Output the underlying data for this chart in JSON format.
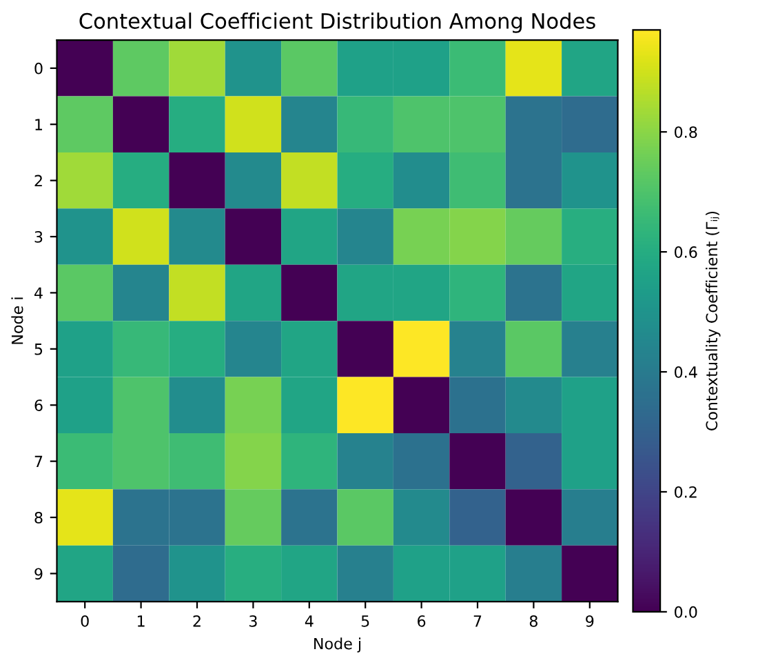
{
  "chart_data": {
    "type": "heatmap",
    "title": "Contextual Coefficient Distribution Among Nodes",
    "xlabel": "Node j",
    "ylabel": "Node i",
    "clabel": "Contextuality Coefficient (Γᵢⱼ)",
    "categories": [
      "0",
      "1",
      "2",
      "3",
      "4",
      "5",
      "6",
      "7",
      "8",
      "9"
    ],
    "y_categories": [
      "0",
      "1",
      "2",
      "3",
      "4",
      "5",
      "6",
      "7",
      "8",
      "9"
    ],
    "cells": [
      [
        0,
        0.73,
        0.83,
        0.5,
        0.72,
        0.55,
        0.55,
        0.66,
        0.93,
        0.57
      ],
      [
        0.73,
        0,
        0.6,
        0.9,
        0.44,
        0.65,
        0.7,
        0.7,
        0.37,
        0.34
      ],
      [
        0.83,
        0.6,
        0,
        0.46,
        0.88,
        0.6,
        0.47,
        0.67,
        0.37,
        0.5
      ],
      [
        0.5,
        0.9,
        0.46,
        0,
        0.57,
        0.44,
        0.77,
        0.79,
        0.74,
        0.61
      ],
      [
        0.72,
        0.44,
        0.88,
        0.57,
        0,
        0.57,
        0.57,
        0.63,
        0.37,
        0.57
      ],
      [
        0.55,
        0.65,
        0.6,
        0.44,
        0.57,
        0,
        0.97,
        0.43,
        0.72,
        0.42
      ],
      [
        0.55,
        0.7,
        0.47,
        0.77,
        0.57,
        0.97,
        0,
        0.36,
        0.46,
        0.55
      ],
      [
        0.66,
        0.7,
        0.67,
        0.79,
        0.63,
        0.43,
        0.36,
        0,
        0.3,
        0.55
      ],
      [
        0.93,
        0.37,
        0.37,
        0.74,
        0.37,
        0.72,
        0.46,
        0.3,
        0,
        0.41
      ],
      [
        0.57,
        0.34,
        0.5,
        0.61,
        0.57,
        0.42,
        0.55,
        0.55,
        0.41,
        0
      ]
    ],
    "clim": [
      0,
      0.97
    ],
    "cticks": [
      {
        "value": 0,
        "label": "0.0"
      },
      {
        "value": 0.2,
        "label": "0.2"
      },
      {
        "value": 0.4,
        "label": "0.4"
      },
      {
        "value": 0.6,
        "label": "0.6"
      },
      {
        "value": 0.8,
        "label": "0.8"
      }
    ]
  }
}
